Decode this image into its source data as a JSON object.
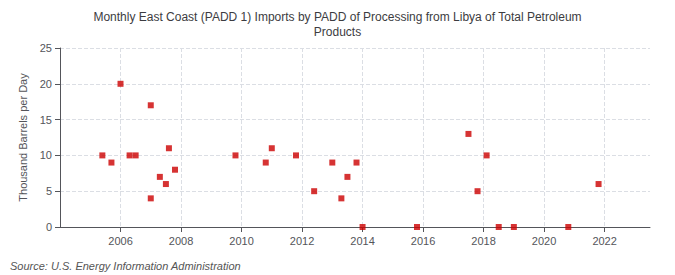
{
  "chart_data": {
    "type": "scatter",
    "title": "Monthly East Coast (PADD 1) Imports by PADD of Processing from Libya of Total Petroleum\nProducts",
    "ylabel": "Thousand Barrels per Day",
    "annotations": [
      "Source: U.S. Energy Information Administration"
    ],
    "color": "#cc0000",
    "marker": "square",
    "grid": true,
    "xlim": [
      2004.0,
      2023.5
    ],
    "ylim": [
      0,
      25
    ],
    "xticks": [
      2006,
      2008,
      2010,
      2012,
      2014,
      2016,
      2018,
      2020,
      2022
    ],
    "yticks": [
      0,
      5,
      10,
      15,
      20,
      25
    ],
    "x": [
      2005.4,
      2005.7,
      2006.0,
      2006.3,
      2006.5,
      2007.0,
      2007.0,
      2007.3,
      2007.5,
      2007.6,
      2007.8,
      2009.8,
      2010.8,
      2011.0,
      2011.8,
      2012.4,
      2013.0,
      2013.3,
      2013.5,
      2013.8,
      2014.0,
      2015.8,
      2017.5,
      2017.8,
      2018.1,
      2018.5,
      2019.0,
      2020.8,
      2021.8
    ],
    "values": [
      10,
      9,
      20,
      10,
      10,
      4,
      17,
      7,
      6,
      11,
      8,
      10,
      9,
      11,
      10,
      5,
      9,
      4,
      7,
      9,
      0,
      0,
      13,
      5,
      10,
      0,
      0,
      0,
      6
    ]
  }
}
